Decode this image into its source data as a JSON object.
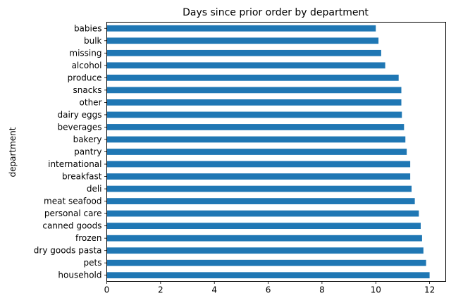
{
  "chart_data": {
    "type": "bar",
    "orientation": "horizontal",
    "title": "Days since prior order by department",
    "xlabel": "",
    "ylabel": "department",
    "xlim": [
      0,
      12.6
    ],
    "x_ticks": [
      0,
      2,
      4,
      6,
      8,
      10,
      12
    ],
    "grid": false,
    "legend": "none",
    "bar_color": "#1f77b4",
    "categories": [
      "babies",
      "bulk",
      "missing",
      "alcohol",
      "produce",
      "snacks",
      "other",
      "dairy eggs",
      "beverages",
      "bakery",
      "pantry",
      "international",
      "breakfast",
      "deli",
      "meat seafood",
      "personal care",
      "canned goods",
      "frozen",
      "dry goods pasta",
      "pets",
      "household"
    ],
    "values": [
      10.0,
      10.1,
      10.2,
      10.35,
      10.85,
      10.95,
      10.95,
      10.97,
      11.05,
      11.1,
      11.15,
      11.28,
      11.28,
      11.33,
      11.45,
      11.6,
      11.67,
      11.72,
      11.77,
      11.87,
      12.0
    ]
  }
}
